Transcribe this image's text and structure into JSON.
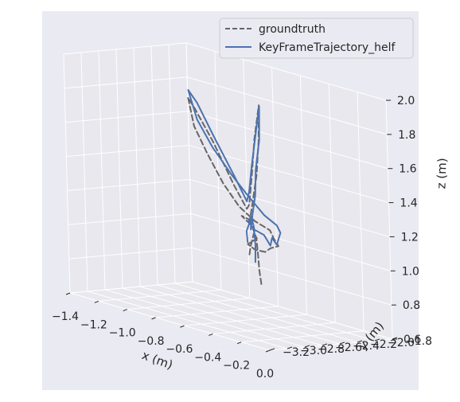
{
  "chart_data": {
    "type": "line",
    "projection": "3d",
    "background_color": "#EAEAF2",
    "pane_color": "#E8E8EE",
    "grid_color": "#FFFFFF",
    "grid": true,
    "legend_position": "top-right",
    "axes": {
      "x": {
        "label": "x (m)",
        "lim": [
          -1.4,
          0.0
        ],
        "ticks": [
          -1.4,
          -1.2,
          -1.0,
          -0.8,
          -0.6,
          -0.4,
          -0.2,
          0.0
        ],
        "tick_labels": [
          "−1.4",
          "−1.2",
          "−1.0",
          "−0.8",
          "−0.6",
          "−0.4",
          "−0.2",
          "0.0"
        ]
      },
      "y": {
        "label": "y (m)",
        "lim": [
          -3.2,
          -1.8
        ],
        "ticks": [
          -3.2,
          -3.0,
          -2.8,
          -2.6,
          -2.4,
          -2.2,
          -2.0,
          -1.8
        ],
        "tick_labels": [
          "−3.2",
          "−3.0",
          "−2.8",
          "−2.6",
          "−2.4",
          "−2.2",
          "−2.0",
          "−1.8"
        ]
      },
      "z": {
        "label": "z (m)",
        "lim": [
          0.6,
          2.0
        ],
        "ticks": [
          0.6,
          0.8,
          1.0,
          1.2,
          1.4,
          1.6,
          1.8,
          2.0
        ],
        "tick_labels": [
          "0.6",
          "0.8",
          "1.0",
          "1.2",
          "1.4",
          "1.6",
          "1.8",
          "2.0"
        ]
      }
    },
    "series": [
      {
        "name": "groundtruth",
        "style": "dashed",
        "color": "#666666",
        "points": [
          [
            -0.45,
            -2.55,
            0.85
          ],
          [
            -0.48,
            -2.52,
            0.92
          ],
          [
            -0.5,
            -2.5,
            1.02
          ],
          [
            -0.52,
            -2.48,
            1.1
          ],
          [
            -0.6,
            -2.4,
            1.15
          ],
          [
            -0.7,
            -2.35,
            1.18
          ],
          [
            -0.55,
            -2.5,
            1.2
          ],
          [
            -0.5,
            -2.55,
            1.3
          ],
          [
            -0.42,
            -2.62,
            1.5
          ],
          [
            -0.35,
            -2.7,
            1.72
          ],
          [
            -0.28,
            -2.8,
            1.95
          ],
          [
            -0.38,
            -2.7,
            1.72
          ],
          [
            -0.45,
            -2.62,
            1.52
          ],
          [
            -0.52,
            -2.55,
            1.3
          ],
          [
            -0.6,
            -2.45,
            1.25
          ],
          [
            -0.75,
            -2.35,
            1.35
          ],
          [
            -0.95,
            -2.25,
            1.55
          ],
          [
            -1.1,
            -2.2,
            1.7
          ],
          [
            -1.15,
            -2.2,
            1.76
          ],
          [
            -1.05,
            -2.3,
            1.62
          ],
          [
            -0.9,
            -2.4,
            1.5
          ],
          [
            -0.7,
            -2.55,
            1.38
          ],
          [
            -0.5,
            -2.7,
            1.3
          ],
          [
            -0.3,
            -2.85,
            1.27
          ],
          [
            -0.1,
            -3.0,
            1.27
          ],
          [
            0.0,
            -3.12,
            1.25
          ],
          [
            0.05,
            -3.15,
            1.22
          ],
          [
            -0.05,
            -3.08,
            1.18
          ],
          [
            -0.15,
            -2.98,
            1.13
          ],
          [
            -0.3,
            -2.85,
            1.1
          ],
          [
            -0.42,
            -2.74,
            1.1
          ],
          [
            -0.38,
            -2.7,
            1.14
          ],
          [
            -0.45,
            -2.62,
            1.15
          ],
          [
            -0.52,
            -2.55,
            1.05
          ],
          [
            -0.55,
            -2.52,
            0.98
          ]
        ]
      },
      {
        "name": "KeyFrameTrajectory_helf",
        "style": "solid",
        "color": "#4C72B0",
        "points": [
          [
            -0.55,
            -2.45,
            0.95
          ],
          [
            -0.54,
            -2.46,
            1.05
          ],
          [
            -0.56,
            -2.44,
            1.15
          ],
          [
            -0.6,
            -2.4,
            1.2
          ],
          [
            -0.62,
            -2.38,
            1.12
          ],
          [
            -0.58,
            -2.42,
            1.22
          ],
          [
            -0.52,
            -2.48,
            1.35
          ],
          [
            -0.45,
            -2.58,
            1.52
          ],
          [
            -0.37,
            -2.66,
            1.72
          ],
          [
            -0.29,
            -2.78,
            1.94
          ],
          [
            -0.36,
            -2.72,
            1.74
          ],
          [
            -0.44,
            -2.64,
            1.55
          ],
          [
            -0.5,
            -2.58,
            1.38
          ],
          [
            -0.58,
            -2.48,
            1.3
          ],
          [
            -0.75,
            -2.34,
            1.4
          ],
          [
            -0.95,
            -2.24,
            1.58
          ],
          [
            -1.1,
            -2.18,
            1.74
          ],
          [
            -1.16,
            -2.18,
            1.8
          ],
          [
            -1.04,
            -2.28,
            1.66
          ],
          [
            -0.85,
            -2.42,
            1.55
          ],
          [
            -0.62,
            -2.58,
            1.45
          ],
          [
            -0.42,
            -2.72,
            1.38
          ],
          [
            -0.2,
            -2.9,
            1.33
          ],
          [
            -0.02,
            -3.05,
            1.32
          ],
          [
            0.06,
            -3.14,
            1.3
          ],
          [
            0.02,
            -3.12,
            1.22
          ],
          [
            -0.05,
            -3.06,
            1.24
          ],
          [
            -0.1,
            -3.0,
            1.18
          ],
          [
            -0.18,
            -2.94,
            1.22
          ],
          [
            -0.3,
            -2.86,
            1.22
          ],
          [
            -0.4,
            -2.76,
            1.24
          ],
          [
            -0.55,
            -2.48,
            1.22
          ],
          [
            -0.6,
            -2.46,
            1.12
          ],
          [
            -0.52,
            -2.58,
            1.08
          ]
        ]
      }
    ]
  }
}
